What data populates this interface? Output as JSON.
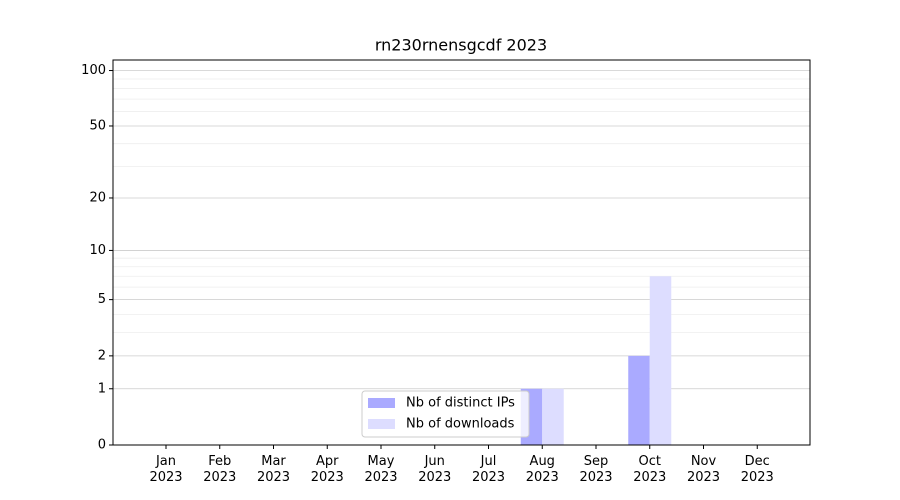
{
  "chart_data": {
    "type": "bar",
    "title": "rn230rnensgcdf 2023",
    "categories": [
      "Jan\n2023",
      "Feb\n2023",
      "Mar\n2023",
      "Apr\n2023",
      "May\n2023",
      "Jun\n2023",
      "Jul\n2023",
      "Aug\n2023",
      "Sep\n2023",
      "Oct\n2023",
      "Nov\n2023",
      "Dec\n2023"
    ],
    "series": [
      {
        "name": "Nb of distinct IPs",
        "color": "#aaaaff",
        "values": [
          0,
          0,
          0,
          0,
          0,
          0,
          0,
          1,
          0,
          2,
          0,
          0
        ]
      },
      {
        "name": "Nb of downloads",
        "color": "#ddddff",
        "values": [
          0,
          0,
          0,
          0,
          0,
          0,
          0,
          1,
          0,
          7,
          0,
          0
        ]
      }
    ],
    "yscale": "log1p",
    "ylim": [
      0,
      114
    ],
    "yticks": [
      0,
      1,
      2,
      5,
      10,
      20,
      50,
      100
    ],
    "yminorticks": [
      3,
      4,
      6,
      7,
      8,
      9,
      30,
      40,
      60,
      70,
      80,
      90
    ],
    "grid": true,
    "legend": "lower center"
  }
}
